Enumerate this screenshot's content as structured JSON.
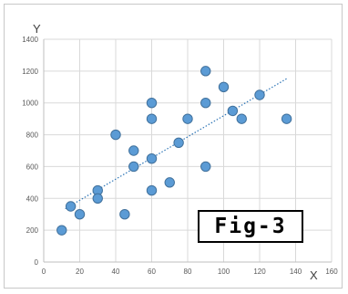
{
  "chart_data": {
    "type": "scatter",
    "title": "",
    "xlabel": "X",
    "ylabel": "Y",
    "xlim": [
      0,
      160
    ],
    "ylim": [
      0,
      1400
    ],
    "xticks": [
      0,
      20,
      40,
      60,
      80,
      100,
      120,
      140,
      160
    ],
    "yticks": [
      0,
      200,
      400,
      600,
      800,
      1000,
      1200,
      1400
    ],
    "grid": true,
    "trendline": {
      "type": "linear",
      "style": "dotted",
      "x_range": [
        12,
        135
      ],
      "y_range": [
        335,
        1152
      ]
    },
    "marker_color": "#5b9bd5",
    "marker_edge_color": "#41719c",
    "trendline_color": "#2e75b6",
    "points": [
      {
        "x": 10,
        "y": 200
      },
      {
        "x": 15,
        "y": 350
      },
      {
        "x": 20,
        "y": 300
      },
      {
        "x": 30,
        "y": 450
      },
      {
        "x": 30,
        "y": 400
      },
      {
        "x": 40,
        "y": 800
      },
      {
        "x": 45,
        "y": 300
      },
      {
        "x": 50,
        "y": 700
      },
      {
        "x": 50,
        "y": 600
      },
      {
        "x": 60,
        "y": 1000
      },
      {
        "x": 60,
        "y": 900
      },
      {
        "x": 60,
        "y": 650
      },
      {
        "x": 60,
        "y": 450
      },
      {
        "x": 70,
        "y": 500
      },
      {
        "x": 75,
        "y": 750
      },
      {
        "x": 80,
        "y": 900
      },
      {
        "x": 90,
        "y": 1200
      },
      {
        "x": 90,
        "y": 1000
      },
      {
        "x": 90,
        "y": 600
      },
      {
        "x": 100,
        "y": 1100
      },
      {
        "x": 105,
        "y": 950
      },
      {
        "x": 110,
        "y": 900
      },
      {
        "x": 120,
        "y": 1050
      },
      {
        "x": 135,
        "y": 900
      }
    ]
  },
  "annotation": {
    "label": "Fig-3"
  }
}
